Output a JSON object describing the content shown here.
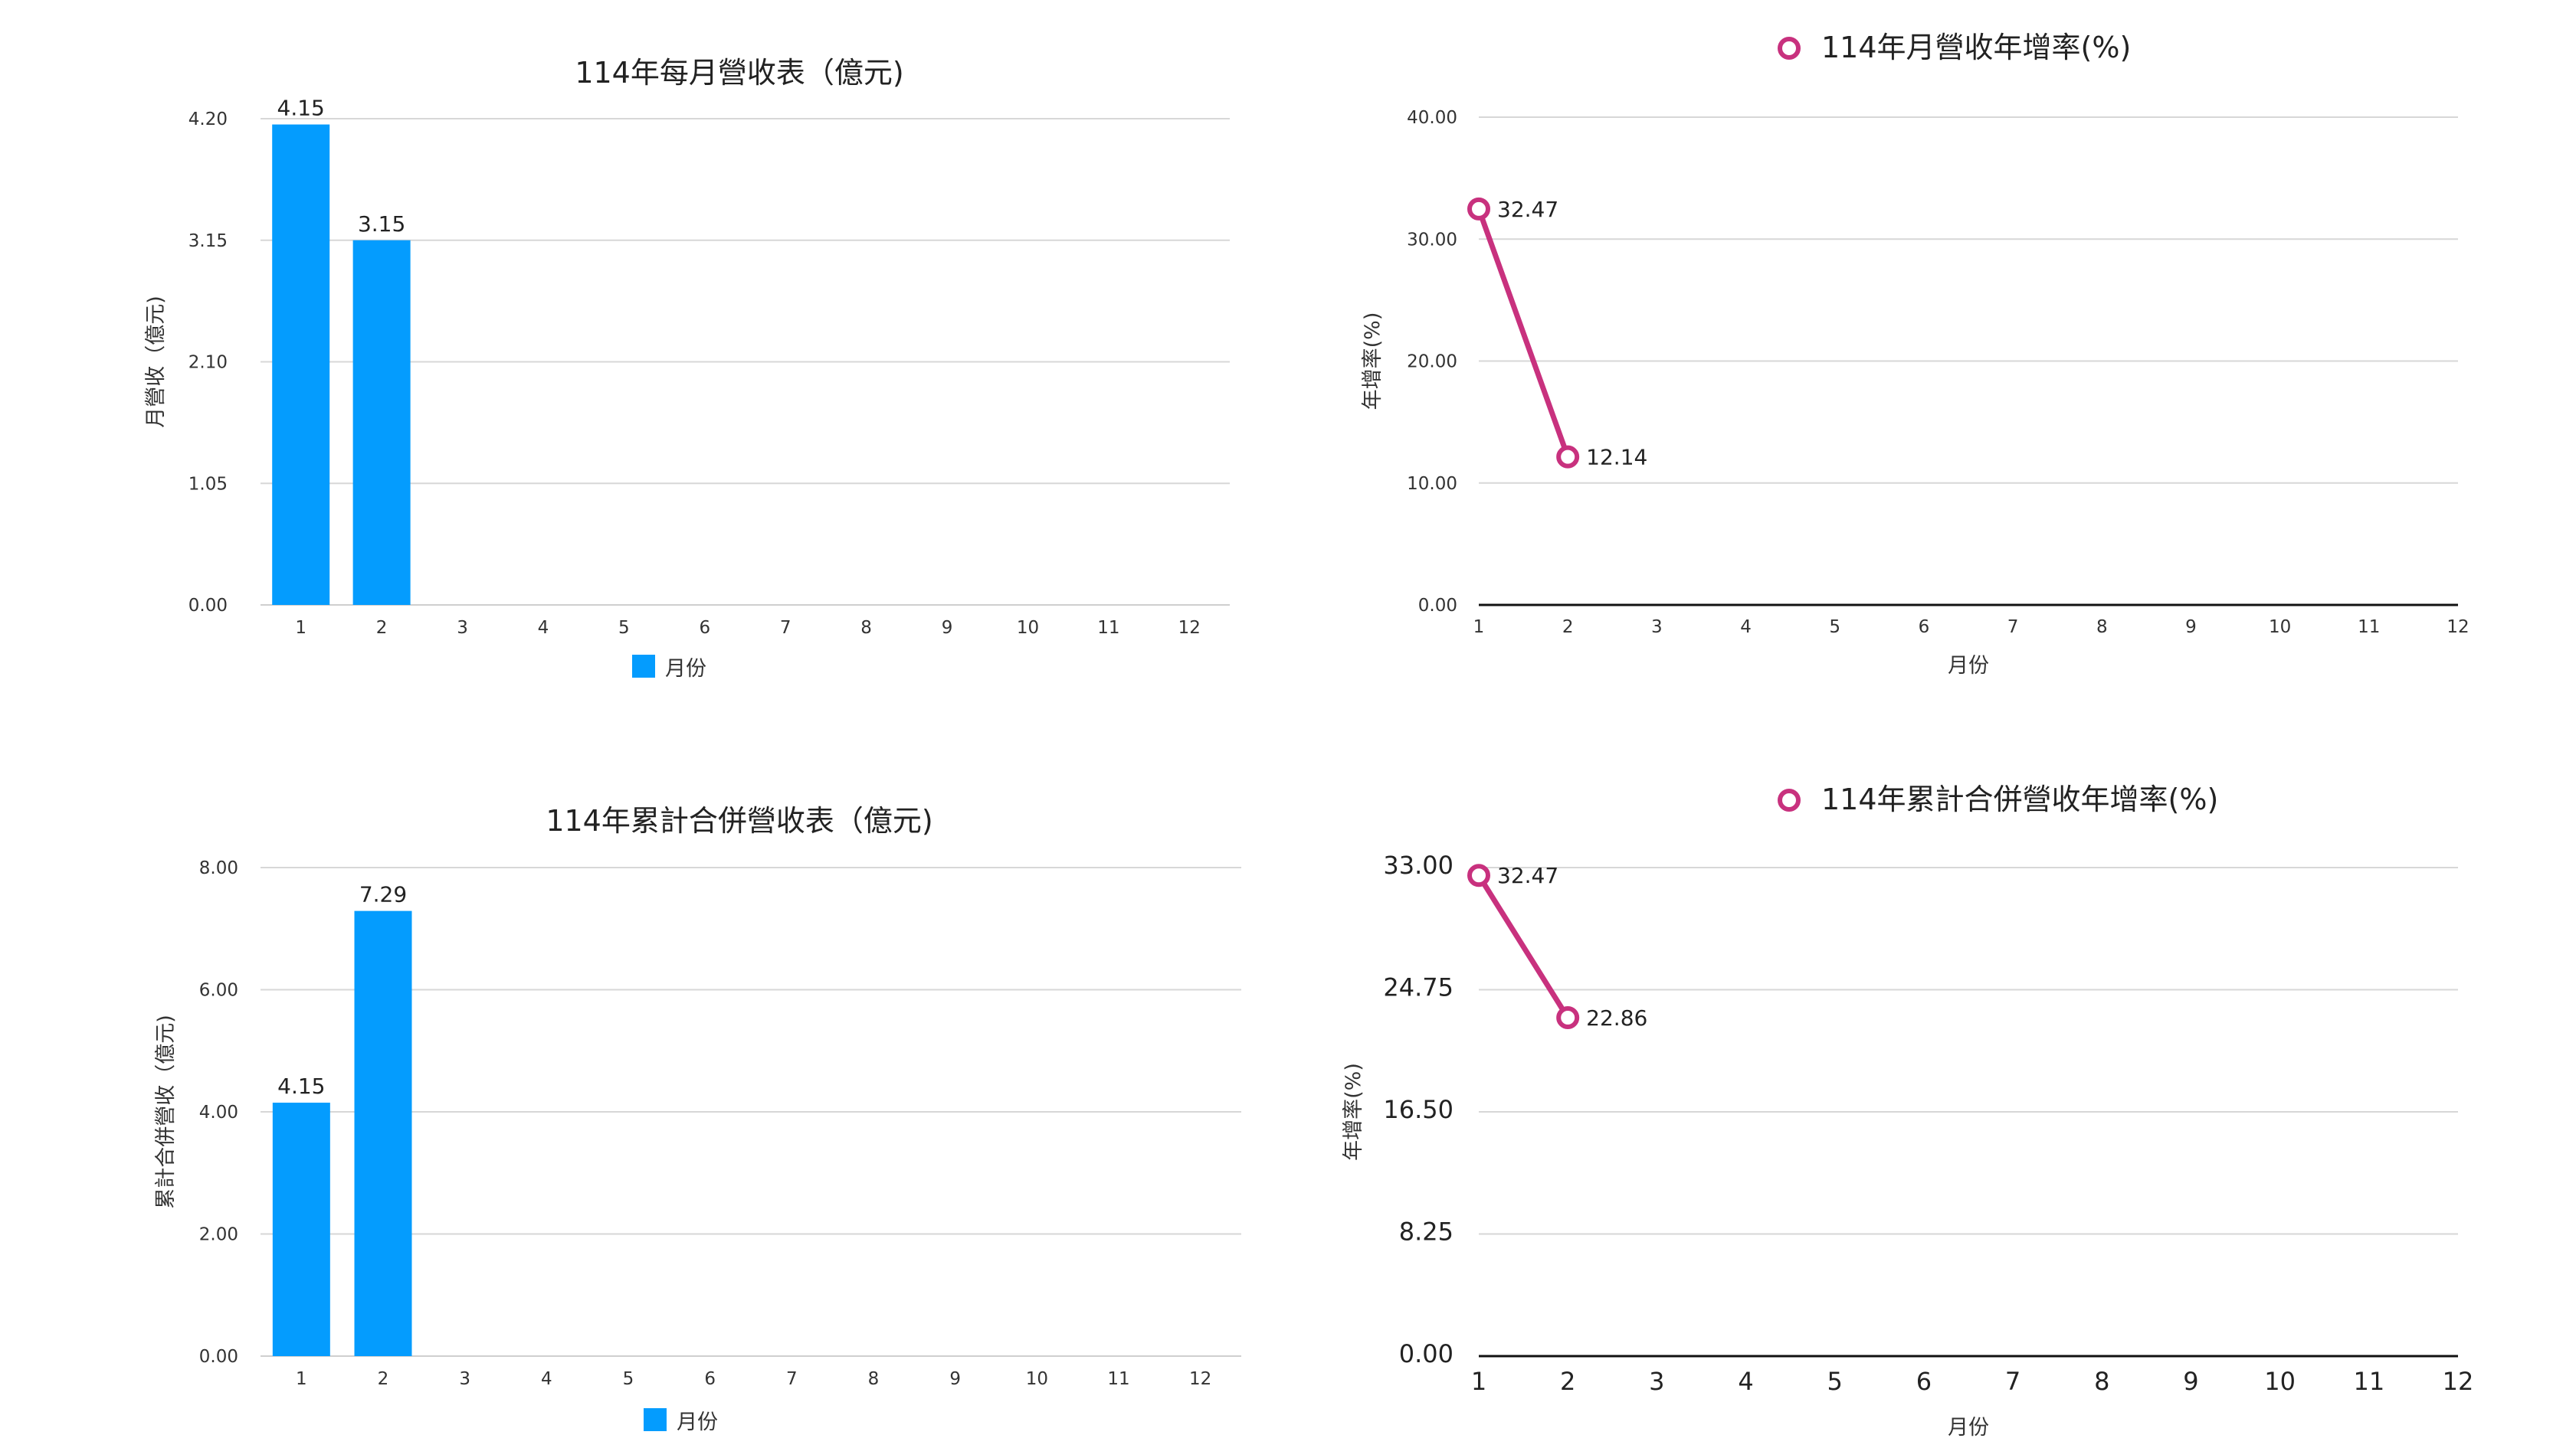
{
  "colors": {
    "bar": "#049CFE",
    "line": "#C8317E",
    "text": "#222222",
    "grid": "#D7D7D7"
  },
  "chart_data": [
    {
      "type": "bar",
      "title": "114年每月營收表（億元)",
      "ylabel": "月營收（億元)",
      "xlabel": "",
      "categories": [
        "1",
        "2",
        "3",
        "4",
        "5",
        "6",
        "7",
        "8",
        "9",
        "10",
        "11",
        "12"
      ],
      "series": [
        {
          "name": "月份",
          "values": [
            4.15,
            3.15,
            null,
            null,
            null,
            null,
            null,
            null,
            null,
            null,
            null,
            null
          ]
        }
      ],
      "data_labels": [
        "4.15",
        "3.15"
      ],
      "yticks": [
        "0.00",
        "1.05",
        "2.10",
        "3.15",
        "4.20"
      ],
      "ylim": [
        0,
        4.2
      ],
      "grid": true,
      "legend": "bottom"
    },
    {
      "type": "line",
      "title": "",
      "ylabel": "年增率(%)",
      "xlabel": "月份",
      "x": [
        "1",
        "2",
        "3",
        "4",
        "5",
        "6",
        "7",
        "8",
        "9",
        "10",
        "11",
        "12"
      ],
      "series": [
        {
          "name": "114年月營收年增率(%)",
          "values": [
            32.47,
            12.14,
            null,
            null,
            null,
            null,
            null,
            null,
            null,
            null,
            null,
            null
          ]
        }
      ],
      "data_labels": [
        "32.47",
        "12.14"
      ],
      "yticks": [
        "0.00",
        "10.00",
        "20.00",
        "30.00",
        "40.00"
      ],
      "ylim": [
        0,
        40
      ],
      "grid": true,
      "legend": "top"
    },
    {
      "type": "bar",
      "title": "114年累計合併營收表（億元)",
      "ylabel": "累計合併營收（億元)",
      "xlabel": "",
      "categories": [
        "1",
        "2",
        "3",
        "4",
        "5",
        "6",
        "7",
        "8",
        "9",
        "10",
        "11",
        "12"
      ],
      "series": [
        {
          "name": "月份",
          "values": [
            4.15,
            7.29,
            null,
            null,
            null,
            null,
            null,
            null,
            null,
            null,
            null,
            null
          ]
        }
      ],
      "data_labels": [
        "4.15",
        "7.29"
      ],
      "yticks": [
        "0.00",
        "2.00",
        "4.00",
        "6.00",
        "8.00"
      ],
      "ylim": [
        0,
        8
      ],
      "grid": true,
      "legend": "bottom"
    },
    {
      "type": "line",
      "title": "",
      "ylabel": "年增率(%)",
      "xlabel": "月份",
      "x": [
        "1",
        "2",
        "3",
        "4",
        "5",
        "6",
        "7",
        "8",
        "9",
        "10",
        "11",
        "12"
      ],
      "series": [
        {
          "name": "114年累計合併營收年增率(%)",
          "values": [
            32.47,
            22.86,
            null,
            null,
            null,
            null,
            null,
            null,
            null,
            null,
            null,
            null
          ]
        }
      ],
      "data_labels": [
        "32.47",
        "22.86"
      ],
      "yticks": [
        "0.00",
        "8.25",
        "16.50",
        "24.75",
        "33.00"
      ],
      "ylim": [
        0,
        33
      ],
      "grid": true,
      "legend": "top"
    }
  ]
}
